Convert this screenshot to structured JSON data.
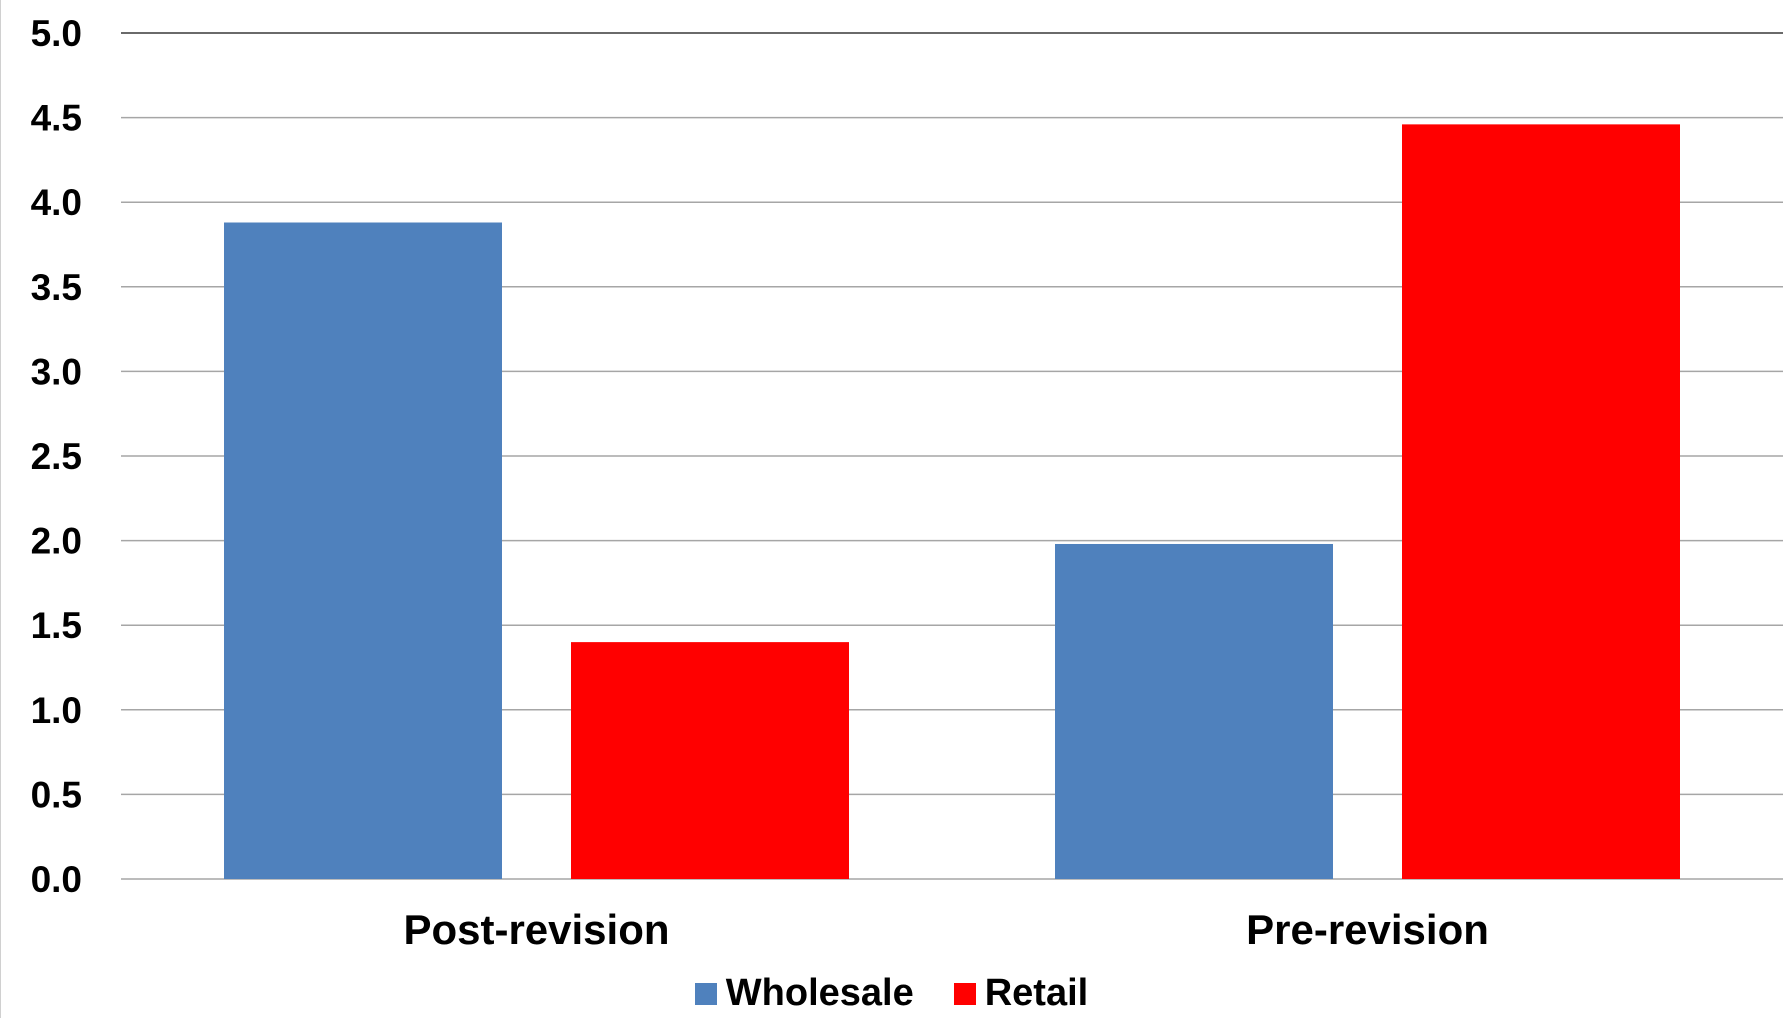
{
  "chart_data": {
    "type": "bar",
    "categories": [
      "Post-revision",
      "Pre-revision"
    ],
    "series": [
      {
        "name": "Wholesale",
        "color": "#4F81BD",
        "values": [
          3.88,
          1.98
        ]
      },
      {
        "name": "Retail",
        "color": "#FF0000",
        "values": [
          1.4,
          4.46
        ]
      }
    ],
    "ylim": [
      0,
      5.0
    ],
    "yticks": [
      "0.0",
      "0.5",
      "1.0",
      "1.5",
      "2.0",
      "2.5",
      "3.0",
      "3.5",
      "4.0",
      "4.5",
      "5.0"
    ],
    "grid": true,
    "legend_position": "bottom"
  }
}
